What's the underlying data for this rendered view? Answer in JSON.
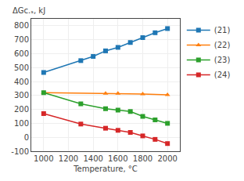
{
  "chart_data": {
    "type": "line",
    "xlabel": "Temperature, °C",
    "ylabel": "ΔGᴄ.ₛ, kJ",
    "xlim": [
      900,
      2100
    ],
    "ylim": [
      -100,
      850
    ],
    "xticks": [
      1000,
      1200,
      1400,
      1600,
      1800,
      2000
    ],
    "yticks": [
      -100,
      0,
      100,
      200,
      300,
      400,
      500,
      600,
      700,
      800
    ],
    "grid": true,
    "legend": "right",
    "series": [
      {
        "name": "(21)",
        "marker": "square",
        "line_style": "solid",
        "x": [
          1000,
          1300,
          1400,
          1500,
          1600,
          1700,
          1800,
          1900,
          2000
        ],
        "values": [
          465,
          550,
          580,
          620,
          645,
          680,
          715,
          750,
          780
        ]
      },
      {
        "name": "(22)",
        "marker": "triangle-up",
        "line_style": "solid",
        "x": [
          1000,
          1500,
          1600,
          1800,
          2000
        ],
        "values": [
          320,
          315,
          315,
          310,
          305
        ]
      },
      {
        "name": "(23)",
        "marker": "square",
        "line_style": "solid",
        "x": [
          1000,
          1300,
          1500,
          1600,
          1700,
          1800,
          1900,
          2000
        ],
        "values": [
          320,
          240,
          205,
          195,
          185,
          150,
          125,
          100
        ]
      },
      {
        "name": "(24)",
        "marker": "square",
        "line_style": "solid",
        "x": [
          1000,
          1300,
          1500,
          1600,
          1700,
          1800,
          1900,
          2000
        ],
        "values": [
          170,
          95,
          65,
          50,
          35,
          10,
          -15,
          -45
        ]
      }
    ]
  }
}
